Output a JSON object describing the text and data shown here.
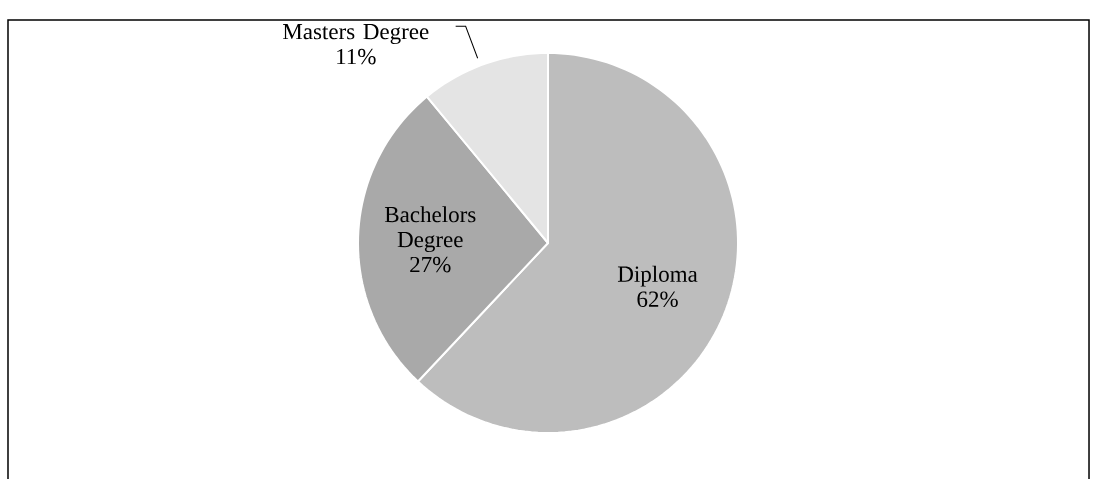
{
  "chart_data": {
    "type": "pie",
    "categories": [
      "Diploma",
      "Bachelors Degree",
      "Masters Degree"
    ],
    "values": [
      62,
      27,
      11
    ],
    "value_labels": [
      "62%",
      "27%",
      "11%"
    ],
    "colors": [
      "#bdbdbd",
      "#a9a9a9",
      "#e4e4e4"
    ]
  }
}
